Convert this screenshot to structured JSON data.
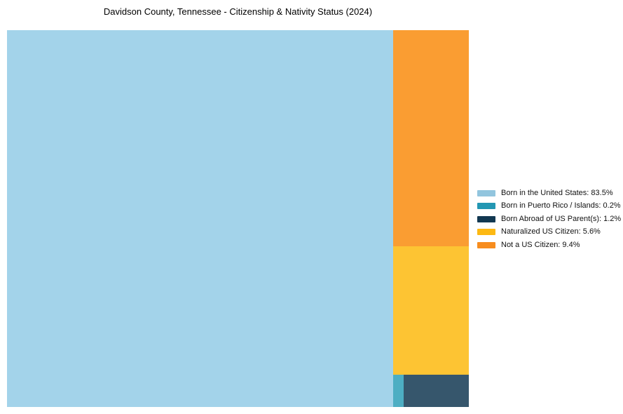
{
  "chart_data": {
    "type": "treemap",
    "title": "Davidson County, Tennessee - Citizenship & Nativity Status (2024)",
    "legend_position": "right",
    "unit": "%",
    "background_color": "#ffffff",
    "block_opacity_note": "chart blocks are lighter tints of legend colors",
    "segments": [
      {
        "label": "Born in the United States",
        "value": 83.5,
        "legend_label": "Born in the United States: 83.5%",
        "color": "#92C5DE",
        "fill": "#A3D3EA"
      },
      {
        "label": "Born in Puerto Rico / Islands",
        "value": 0.2,
        "legend_label": "Born in Puerto Rico / Islands: 0.2%",
        "color": "#2397B3",
        "fill": "#4DAEC3"
      },
      {
        "label": "Born Abroad of US Parent(s)",
        "value": 1.2,
        "legend_label": "Born Abroad of US Parent(s): 1.2%",
        "color": "#123851",
        "fill": "#36566C"
      },
      {
        "label": "Naturalized US Citizen",
        "value": 5.6,
        "legend_label": "Naturalized US Citizen: 5.6%",
        "color": "#FDB913",
        "fill": "#FDC433"
      },
      {
        "label": "Not a US Citizen",
        "value": 9.4,
        "legend_label": "Not a US Citizen: 9.4%",
        "color": "#F78D1E",
        "fill": "#FA9D32"
      }
    ]
  }
}
